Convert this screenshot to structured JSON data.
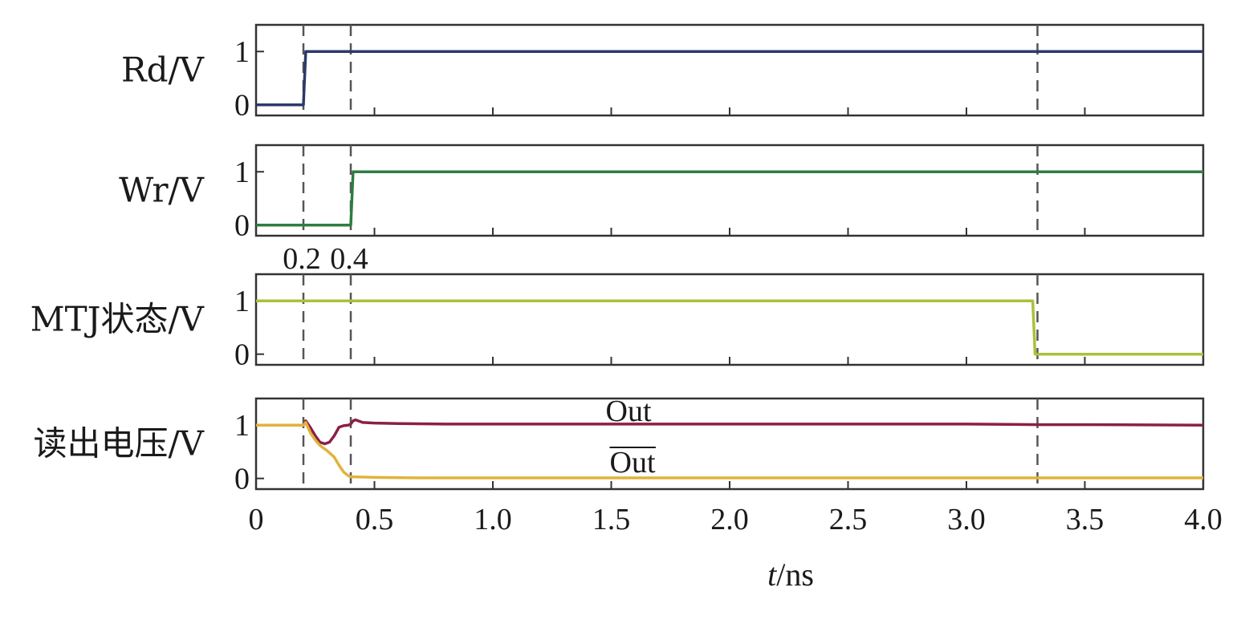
{
  "chart_data": {
    "type": "line",
    "xlabel": {
      "italic": "t",
      "rest": "/ns"
    },
    "xlim": [
      0,
      4.0
    ],
    "xticks": [
      "0",
      "0.5",
      "1.0",
      "1.5",
      "2.0",
      "2.5",
      "3.0",
      "3.5",
      "4.0"
    ],
    "xtick_values": [
      0,
      0.5,
      1.0,
      1.5,
      2.0,
      2.5,
      3.0,
      3.5,
      4.0
    ],
    "minor_tick_step": 0.5,
    "event_lines": [
      0.2,
      0.4,
      3.3
    ],
    "event_labels": [
      {
        "text": "0.2",
        "x": 0.2
      },
      {
        "text": "0.4",
        "x": 0.4
      }
    ],
    "panels": [
      {
        "ylabel": "Rd/V",
        "ylim": [
          -0.2,
          1.5
        ],
        "yticks": [
          "0",
          "1"
        ],
        "ytick_values": [
          0,
          1
        ],
        "series": [
          {
            "color": "#2c3a6b",
            "x": [
              0,
              0.2,
              0.21,
              4.0
            ],
            "y": [
              0,
              0,
              1,
              1
            ]
          }
        ]
      },
      {
        "ylabel": "Wr/V",
        "ylim": [
          -0.2,
          1.5
        ],
        "yticks": [
          "0",
          "1"
        ],
        "ytick_values": [
          0,
          1
        ],
        "series": [
          {
            "color": "#2e7d42",
            "x": [
              0,
              0.4,
              0.41,
              4.0
            ],
            "y": [
              0,
              0,
              1,
              1
            ]
          }
        ]
      },
      {
        "ylabel": "MTJ状态/V",
        "ylim": [
          -0.2,
          1.5
        ],
        "yticks": [
          "0",
          "1"
        ],
        "ytick_values": [
          0,
          1
        ],
        "series": [
          {
            "color": "#a8c23a",
            "x": [
              0,
              3.28,
              3.29,
              4.0
            ],
            "y": [
              1,
              1,
              0,
              0
            ]
          }
        ]
      },
      {
        "ylabel": "读出电压/V",
        "ylim": [
          -0.2,
          1.5
        ],
        "yticks": [
          "0",
          "1"
        ],
        "ytick_values": [
          0,
          1
        ],
        "series": [
          {
            "name": "Out",
            "color": "#8b1f47",
            "x": [
              0,
              0.2,
              0.21,
              0.23,
              0.25,
              0.27,
              0.29,
              0.31,
              0.33,
              0.35,
              0.37,
              0.39,
              0.4,
              0.41,
              0.42,
              0.45,
              0.5,
              0.6,
              0.8,
              1.0,
              2.0,
              3.0,
              3.3,
              3.5,
              4.0
            ],
            "y": [
              1.0,
              1.0,
              1.08,
              0.95,
              0.8,
              0.68,
              0.65,
              0.68,
              0.8,
              0.96,
              0.99,
              1.0,
              1.02,
              1.08,
              1.1,
              1.05,
              1.04,
              1.03,
              1.02,
              1.02,
              1.02,
              1.02,
              1.01,
              1.01,
              1.0
            ]
          },
          {
            "name": "Out",
            "overline": true,
            "color": "#e0b33a",
            "x": [
              0,
              0.2,
              0.21,
              0.23,
              0.25,
              0.27,
              0.3,
              0.33,
              0.35,
              0.37,
              0.39,
              0.4,
              0.42,
              0.5,
              0.7,
              1.0,
              2.0,
              3.0,
              4.0
            ],
            "y": [
              1.0,
              1.0,
              1.05,
              0.85,
              0.72,
              0.62,
              0.52,
              0.4,
              0.25,
              0.12,
              0.05,
              0.03,
              0.03,
              0.02,
              0.01,
              0.01,
              0.01,
              0.01,
              0.01
            ]
          }
        ]
      }
    ]
  }
}
